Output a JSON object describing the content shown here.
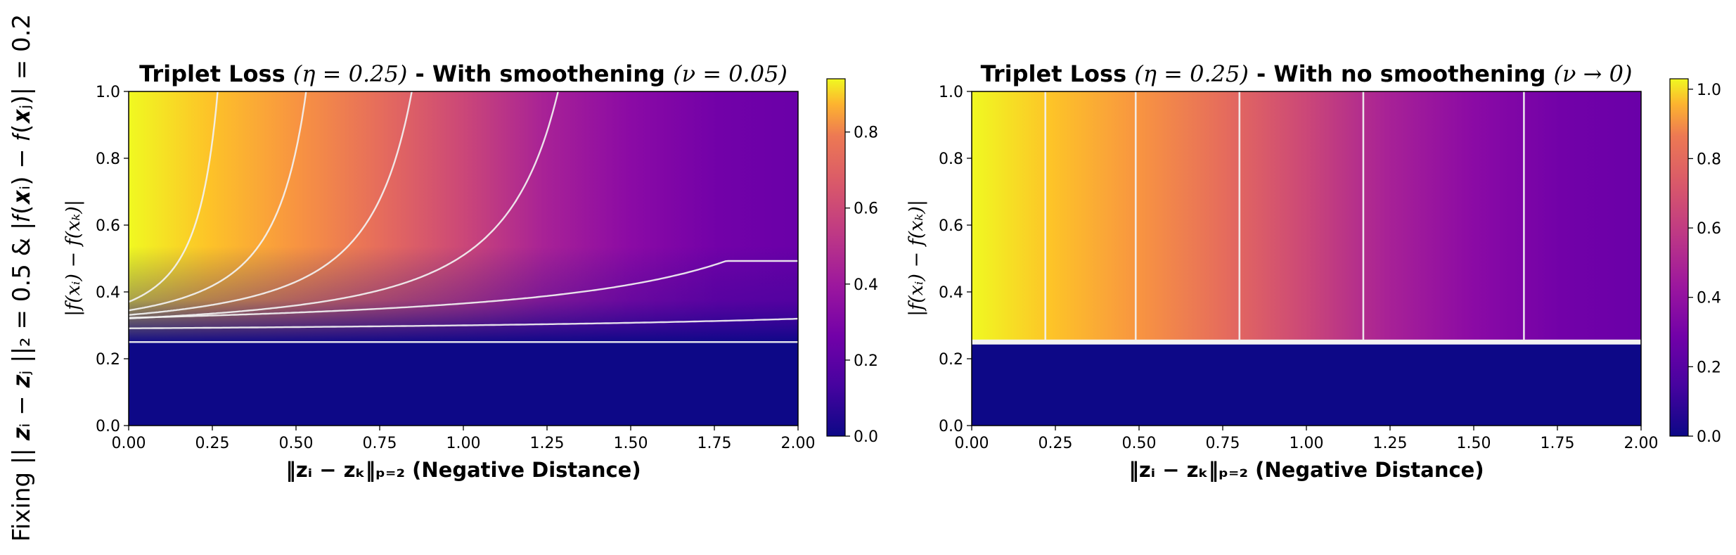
{
  "figure": {
    "side_label": "Fixing || 𝒛ᵢ − 𝒛ⱼ ||₂ = 0.5 & |𝑓(𝒙ᵢ) − 𝑓(𝒙ⱼ)| = 0.2"
  },
  "colors": {
    "colormap": "plasma",
    "contour": "#f2f2f2",
    "axes": "#000000"
  },
  "chart_data": [
    {
      "type": "heatmap",
      "title_prefix": "Triplet Loss ",
      "title_math": "(η = 0.25)",
      "title_suffix": " - With smoothening ",
      "title_math2": "(ν = 0.05)",
      "xlabel": "‖zᵢ − zₖ‖ₚ₌₂ (Negative Distance)",
      "ylabel": "|f(xᵢ) − f(xₖ)|",
      "xlim": [
        0.0,
        2.0
      ],
      "ylim": [
        0.0,
        1.0
      ],
      "xticks": [
        "0.00",
        "0.25",
        "0.50",
        "0.75",
        "1.00",
        "1.25",
        "1.50",
        "1.75",
        "2.00"
      ],
      "yticks": [
        "0.0",
        "0.2",
        "0.4",
        "0.6",
        "0.8",
        "1.0"
      ],
      "colorbar_range": [
        0.0,
        0.94
      ],
      "colorbar_ticks": [
        "0.0",
        "0.2",
        "0.4",
        "0.6",
        "0.8"
      ],
      "eta": 0.25,
      "nu": 0.05,
      "contour_levels": [
        0.0,
        0.1,
        0.25,
        0.4,
        0.55,
        0.7,
        0.85
      ],
      "smoothening": true
    },
    {
      "type": "heatmap",
      "title_prefix": "Triplet Loss ",
      "title_math": "(η = 0.25)",
      "title_suffix": " - With no smoothening ",
      "title_math2": "(ν → 0)",
      "xlabel": "‖zᵢ − zₖ‖ₚ₌₂ (Negative Distance)",
      "ylabel": "|f(xᵢ) − f(xₖ)|",
      "xlim": [
        0.0,
        2.0
      ],
      "ylim": [
        0.0,
        1.0
      ],
      "xticks": [
        "0.00",
        "0.25",
        "0.50",
        "0.75",
        "1.00",
        "1.25",
        "1.50",
        "1.75",
        "2.00"
      ],
      "yticks": [
        "0.0",
        "0.2",
        "0.4",
        "0.6",
        "0.8",
        "1.0"
      ],
      "colorbar_range": [
        0.0,
        1.03
      ],
      "colorbar_ticks": [
        "0.0",
        "0.2",
        "0.4",
        "0.6",
        "0.8",
        "1.0"
      ],
      "eta": 0.25,
      "nu": 0.0,
      "contour_xs": [
        0.22,
        0.49,
        0.8,
        1.17,
        1.65
      ],
      "smoothening": false
    }
  ]
}
